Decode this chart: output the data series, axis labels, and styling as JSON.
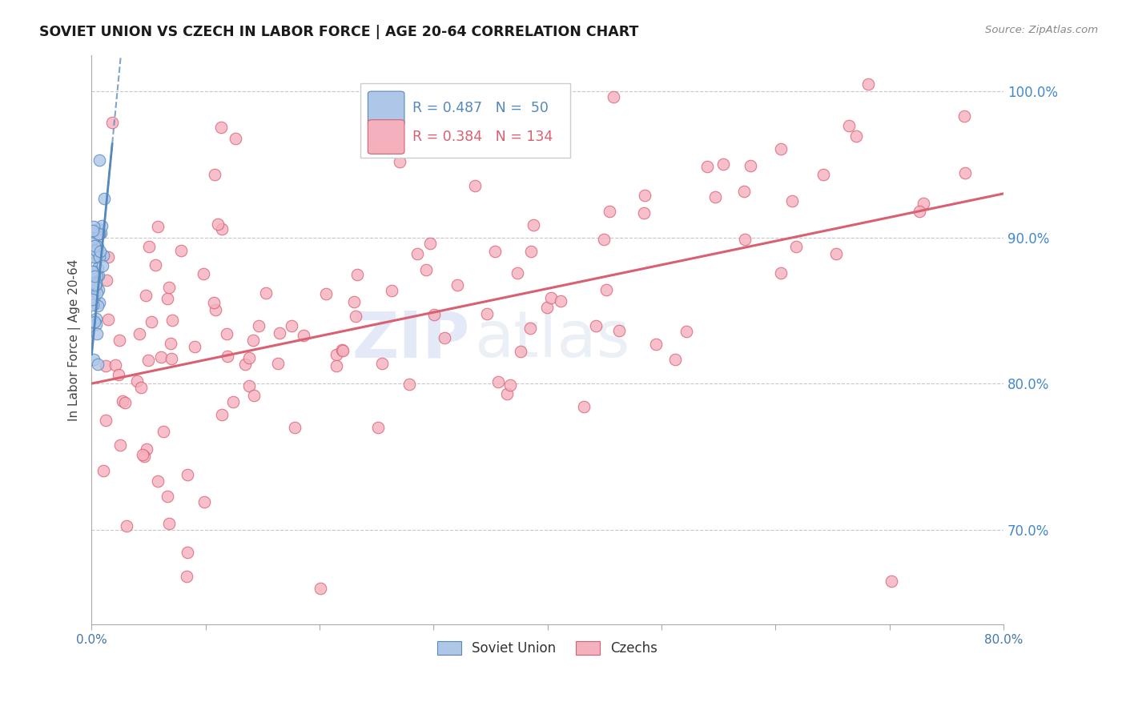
{
  "title": "SOVIET UNION VS CZECH IN LABOR FORCE | AGE 20-64 CORRELATION CHART",
  "source_text": "Source: ZipAtlas.com",
  "ylabel": "In Labor Force | Age 20-64",
  "xmin": 0.0,
  "xmax": 0.8,
  "ymin": 0.635,
  "ymax": 1.025,
  "yticks": [
    0.7,
    0.8,
    0.9,
    1.0
  ],
  "ytick_labels": [
    "70.0%",
    "80.0%",
    "90.0%",
    "100.0%"
  ],
  "grid_color": "#c8c8c8",
  "background_color": "#ffffff",
  "soviet_color": "#aec6e8",
  "soviet_edge_color": "#5588bb",
  "czech_color": "#f5b0be",
  "czech_edge_color": "#d96070",
  "trend_blue_color": "#5588bb",
  "trend_pink_color": "#d96070",
  "watermark_zip": "#ccd8f0",
  "watermark_atlas": "#c8d8e8",
  "legend_soviet_r": "R = 0.487",
  "legend_soviet_n": "N =  50",
  "legend_czech_r": "R = 0.384",
  "legend_czech_n": "N = 134"
}
